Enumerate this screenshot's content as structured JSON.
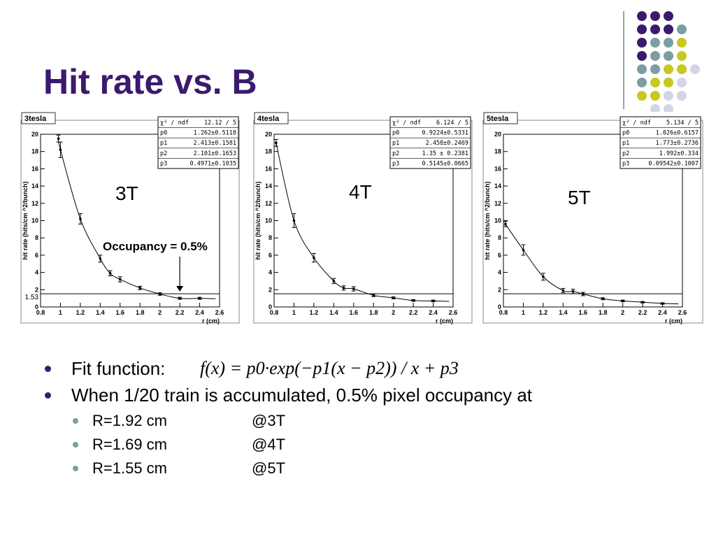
{
  "slide": {
    "title": "Hit rate vs. B",
    "bullets": {
      "fit_label": "Fit function:",
      "fit_formula": "f(x) = p0·exp(−p1(x − p2)) / x + p3",
      "accumulated": "When 1/20 train is accumulated, 0.5% pixel occupancy at",
      "sub": [
        {
          "r": "R=1.92 cm",
          "field": "@3T"
        },
        {
          "r": "R=1.69 cm",
          "field": "@4T"
        },
        {
          "r": "R=1.55 cm",
          "field": "@5T"
        }
      ]
    }
  },
  "colors": {
    "title": "#3b1a6e",
    "dot_purple": "#3b1a6e",
    "dot_teal": "#7b9ea3",
    "dot_yellow": "#c8c81e",
    "dot_lavender": "#d4d4e4",
    "divider": "#9ca3a8"
  },
  "chart_data": [
    {
      "type": "scatter",
      "title": "3tesla",
      "label": "3T",
      "xlabel": "r (cm)",
      "ylabel": "hit rate (hits/cm ^2/bunch)",
      "xlim": [
        0.8,
        2.6
      ],
      "ylim": [
        0,
        20
      ],
      "xticks": [
        "0.8",
        "1",
        "1.2",
        "1.4",
        "1.6",
        "1.8",
        "2",
        "2.2",
        "2.4",
        "2.6"
      ],
      "yticks": [
        "0",
        "2",
        "4",
        "6",
        "8",
        "10",
        "12",
        "14",
        "16",
        "18",
        "20"
      ],
      "threshold": 1.53,
      "threshold_label": "1.53",
      "annotation": "Occupancy = 0.5%",
      "annotation_x": 2.2,
      "stats": [
        {
          "name": "χ² / ndf",
          "value": "12.12 / 5"
        },
        {
          "name": "p0",
          "value": "1.262±0.5118"
        },
        {
          "name": "p1",
          "value": "2.413±0.1581"
        },
        {
          "name": "p2",
          "value": "2.101±0.1653"
        },
        {
          "name": "p3",
          "value": "0.4971±0.1035"
        }
      ],
      "points": [
        {
          "x": 0.98,
          "y": 19.5,
          "err": 0.4
        },
        {
          "x": 1.0,
          "y": 18.2,
          "err": 0.9
        },
        {
          "x": 1.2,
          "y": 10.2,
          "err": 0.6
        },
        {
          "x": 1.4,
          "y": 5.6,
          "err": 0.4
        },
        {
          "x": 1.5,
          "y": 3.9,
          "err": 0.3
        },
        {
          "x": 1.6,
          "y": 3.2,
          "err": 0.3
        },
        {
          "x": 1.8,
          "y": 2.2,
          "err": 0.2
        },
        {
          "x": 2.0,
          "y": 1.5,
          "err": 0.15
        },
        {
          "x": 2.2,
          "y": 1.0,
          "err": 0.12
        },
        {
          "x": 2.4,
          "y": 1.0,
          "err": 0.12
        }
      ]
    },
    {
      "type": "scatter",
      "title": "4tesla",
      "label": "4T",
      "xlabel": "r (cm)",
      "ylabel": "hit rate (hits/cm ^2/bunch)",
      "xlim": [
        0.8,
        2.6
      ],
      "ylim": [
        0,
        20
      ],
      "xticks": [
        "0.8",
        "1",
        "1.2",
        "1.4",
        "1.6",
        "1.8",
        "2",
        "2.2",
        "2.4",
        "2.6"
      ],
      "yticks": [
        "0",
        "2",
        "4",
        "6",
        "8",
        "10",
        "12",
        "14",
        "16",
        "18",
        "20"
      ],
      "threshold": 1.53,
      "stats": [
        {
          "name": "χ² / ndf",
          "value": "6.124 / 5"
        },
        {
          "name": "p0",
          "value": "0.9224±0.5331"
        },
        {
          "name": "p1",
          "value": "2.458±0.2469"
        },
        {
          "name": "p2",
          "value": "1.35 ± 0.2381"
        },
        {
          "name": "p3",
          "value": "0.5145±0.0665"
        }
      ],
      "points": [
        {
          "x": 0.82,
          "y": 19.0,
          "err": 0.4
        },
        {
          "x": 1.0,
          "y": 10.0,
          "err": 0.8
        },
        {
          "x": 1.2,
          "y": 5.7,
          "err": 0.5
        },
        {
          "x": 1.4,
          "y": 3.0,
          "err": 0.3
        },
        {
          "x": 1.5,
          "y": 2.2,
          "err": 0.25
        },
        {
          "x": 1.6,
          "y": 2.1,
          "err": 0.25
        },
        {
          "x": 1.8,
          "y": 1.35,
          "err": 0.15
        },
        {
          "x": 2.0,
          "y": 1.05,
          "err": 0.12
        },
        {
          "x": 2.2,
          "y": 0.75,
          "err": 0.1
        },
        {
          "x": 2.4,
          "y": 0.7,
          "err": 0.1
        }
      ]
    },
    {
      "type": "scatter",
      "title": "5tesla",
      "label": "5T",
      "xlabel": "r (cm)",
      "ylabel": "hit rate (hits/cm ^2/bunch)",
      "xlim": [
        0.8,
        2.6
      ],
      "ylim": [
        0,
        20
      ],
      "xticks": [
        "0.8",
        "1",
        "1.2",
        "1.4",
        "1.6",
        "1.8",
        "2",
        "2.2",
        "2.4",
        "2.6"
      ],
      "yticks": [
        "0",
        "2",
        "4",
        "6",
        "8",
        "10",
        "12",
        "14",
        "16",
        "18",
        "20"
      ],
      "threshold": 1.53,
      "stats": [
        {
          "name": "χ² / ndf",
          "value": "5.134 / 5"
        },
        {
          "name": "p0",
          "value": "1.026±0.6157"
        },
        {
          "name": "p1",
          "value": "1.773±0.2736"
        },
        {
          "name": "p2",
          "value": "1.992±0.334"
        },
        {
          "name": "p3",
          "value": "0.09542±0.1007"
        }
      ],
      "points": [
        {
          "x": 0.82,
          "y": 9.6,
          "err": 0.3
        },
        {
          "x": 1.0,
          "y": 6.6,
          "err": 0.6
        },
        {
          "x": 1.2,
          "y": 3.5,
          "err": 0.4
        },
        {
          "x": 1.4,
          "y": 1.9,
          "err": 0.25
        },
        {
          "x": 1.5,
          "y": 1.8,
          "err": 0.25
        },
        {
          "x": 1.6,
          "y": 1.5,
          "err": 0.2
        },
        {
          "x": 1.8,
          "y": 0.95,
          "err": 0.12
        },
        {
          "x": 2.0,
          "y": 0.7,
          "err": 0.1
        },
        {
          "x": 2.2,
          "y": 0.55,
          "err": 0.08
        },
        {
          "x": 2.4,
          "y": 0.4,
          "err": 0.08
        }
      ]
    }
  ]
}
